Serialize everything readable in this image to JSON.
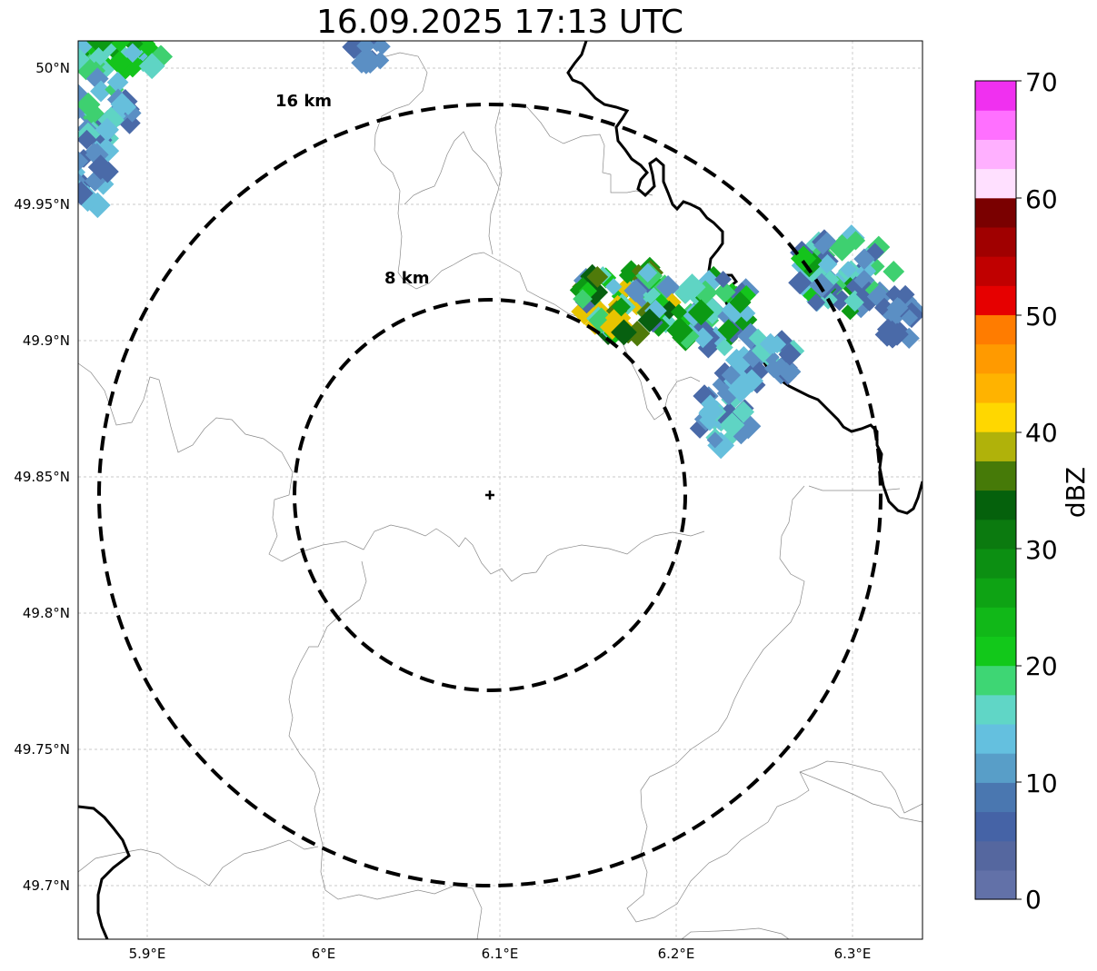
{
  "title": "16.09.2025 17:13 UTC",
  "map": {
    "lon_ticks": [
      "5.9°E",
      "6°E",
      "6.1°E",
      "6.2°E",
      "6.3°E"
    ],
    "lat_ticks": [
      "50°N",
      "49.95°N",
      "49.9°N",
      "49.85°N",
      "49.8°N",
      "49.75°N",
      "49.7°N"
    ],
    "radar_site_icon": "plus-marker-icon",
    "rings": [
      {
        "label": "16 km",
        "radius_km": 16
      },
      {
        "label": "8 km",
        "radius_km": 8
      }
    ]
  },
  "colorbar": {
    "label": "dBZ",
    "ticks": [
      "0",
      "10",
      "20",
      "30",
      "40",
      "50",
      "60",
      "70"
    ],
    "colors": [
      "#6271a8",
      "#55679f",
      "#4563a6",
      "#4a77b0",
      "#589ec8",
      "#64c0df",
      "#60d6c6",
      "#3ed674",
      "#12c81a",
      "#11b818",
      "#0ea314",
      "#0c8f12",
      "#0b7a0f",
      "#05610c",
      "#467a08",
      "#b0b20a",
      "#ffd700",
      "#ffb300",
      "#ff9a00",
      "#ff7c00",
      "#e60000",
      "#c00000",
      "#a00000",
      "#7a0000",
      "#ffe0ff",
      "#ffb0ff",
      "#ff70ff",
      "#f030f0"
    ]
  }
}
